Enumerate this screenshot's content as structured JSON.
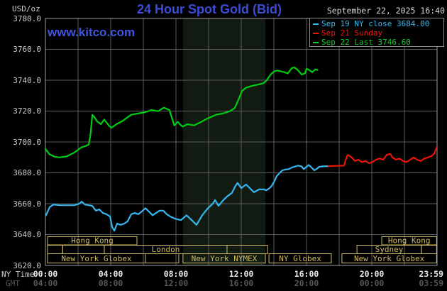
{
  "header": {
    "units": "USD/oz",
    "title": "24 Hour Spot Gold (Bid)",
    "date": "September 22, 2025 16:40",
    "watermark": "www.kitco.com"
  },
  "legend": {
    "items": [
      {
        "label": "Sep 19 NY close 3684.00",
        "color": "#2fb9f2"
      },
      {
        "label": "Sep 21 Sunday",
        "color": "#f2180c"
      },
      {
        "label": "Sep 22 Last 3746.60",
        "color": "#0fce2a"
      }
    ]
  },
  "axis_labels": {
    "ny_time": "NY Time",
    "gmt": "GMT"
  },
  "colors": {
    "background": "#000000",
    "grid": "#5c5c5c",
    "border": "#9c9c9c",
    "session": "#cdb968",
    "band": "#121b12",
    "series_green": "#00cc11",
    "series_cyan": "#36b6ee",
    "series_red": "#ea1508",
    "title_blue": "#3c4bd8",
    "watermark_blue": "#4155df"
  },
  "sessions": {
    "rows": [
      {
        "boxes": [
          {
            "t0": 0.13,
            "t1": 5.61,
            "label": "Hong Kong"
          },
          {
            "t0": 20.61,
            "t1": 23.97,
            "label": "Hong Kong"
          }
        ]
      },
      {
        "boxes": [
          {
            "t0": 0.13,
            "t1": 1.06,
            "label": ""
          },
          {
            "t0": 1.06,
            "t1": 3.61,
            "label": ""
          },
          {
            "t0": 3.61,
            "t1": 11.13,
            "label": "London"
          },
          {
            "t0": 11.13,
            "t1": 13.61,
            "label": ""
          },
          {
            "t0": 19.09,
            "t1": 23.04,
            "label": "Sydney"
          },
          {
            "t0": 23.04,
            "t1": 23.97,
            "label": ""
          }
        ]
      },
      {
        "boxes": [
          {
            "t0": 0.13,
            "t1": 6.13,
            "label": "New York Globex"
          },
          {
            "t0": 6.13,
            "t1": 8.17,
            "label": ""
          },
          {
            "t0": 8.43,
            "t1": 13.48,
            "label": "New York NYMEX"
          },
          {
            "t0": 13.7,
            "t1": 17.52,
            "label": "NY Globex"
          },
          {
            "t0": 18.17,
            "t1": 23.97,
            "label": "New York Globex"
          }
        ]
      }
    ]
  },
  "chart_data": {
    "type": "line",
    "title": "24 Hour Spot Gold (Bid)",
    "xlabel": "NY Time",
    "ylabel": "USD/oz",
    "xlim": [
      0,
      24
    ],
    "ylim": [
      3620,
      3780
    ],
    "grid": true,
    "x_unit": "hours NY time",
    "highlight_band": {
      "t0": 8.43,
      "t1": 13.48,
      "meaning": "NYMEX floor session"
    },
    "yticks": [
      {
        "v": 3780,
        "label": "3780.0"
      },
      {
        "v": 3760,
        "label": "3760.0"
      },
      {
        "v": 3740,
        "label": "3740.0"
      },
      {
        "v": 3720,
        "label": "3720.0"
      },
      {
        "v": 3700,
        "label": "3700.0"
      },
      {
        "v": 3680,
        "label": "3680.0"
      },
      {
        "v": 3660,
        "label": "3660.0"
      },
      {
        "v": 3640,
        "label": "3640.0"
      },
      {
        "v": 3620,
        "label": "3620.0"
      }
    ],
    "xticks": [
      {
        "t": 0,
        "ny": "00:00",
        "gmt": "04:00"
      },
      {
        "t": 4,
        "ny": "04:00",
        "gmt": "08:00"
      },
      {
        "t": 8,
        "ny": "08:00",
        "gmt": "12:00"
      },
      {
        "t": 12,
        "ny": "12:00",
        "gmt": "16:00"
      },
      {
        "t": 16,
        "ny": "16:00",
        "gmt": "20:00"
      },
      {
        "t": 20,
        "ny": "20:00",
        "gmt": "00:00"
      },
      {
        "t": 23.64,
        "ny": "23:59",
        "gmt": "03:59"
      }
    ],
    "series": [
      {
        "name": "Sep 19 NY close 3684.00",
        "color": "#36b6ee",
        "points": [
          [
            0.04,
            3652.5
          ],
          [
            0.26,
            3657.8
          ],
          [
            0.48,
            3659.4
          ],
          [
            0.91,
            3659
          ],
          [
            1.78,
            3659
          ],
          [
            2.09,
            3660.1
          ],
          [
            2.22,
            3661.4
          ],
          [
            2.43,
            3659.4
          ],
          [
            2.87,
            3658.6
          ],
          [
            3.09,
            3655.5
          ],
          [
            3.3,
            3656.3
          ],
          [
            3.52,
            3654
          ],
          [
            3.74,
            3653.2
          ],
          [
            3.96,
            3651.7
          ],
          [
            4.09,
            3644.8
          ],
          [
            4.22,
            3642.5
          ],
          [
            4.39,
            3647.1
          ],
          [
            4.61,
            3646.3
          ],
          [
            4.83,
            3647.1
          ],
          [
            5.04,
            3648.6
          ],
          [
            5.26,
            3653.2
          ],
          [
            5.48,
            3654
          ],
          [
            5.7,
            3653.2
          ],
          [
            5.91,
            3655
          ],
          [
            6.13,
            3657.1
          ],
          [
            6.35,
            3654.8
          ],
          [
            6.57,
            3652.5
          ],
          [
            6.78,
            3654
          ],
          [
            7,
            3655.5
          ],
          [
            7.22,
            3655.5
          ],
          [
            7.43,
            3653.2
          ],
          [
            7.65,
            3651.7
          ],
          [
            7.96,
            3650.2
          ],
          [
            8.3,
            3649.4
          ],
          [
            8.65,
            3652.5
          ],
          [
            8.96,
            3649.4
          ],
          [
            9.26,
            3646.3
          ],
          [
            9.61,
            3652.5
          ],
          [
            9.96,
            3657.1
          ],
          [
            10.26,
            3660.1
          ],
          [
            10.39,
            3662.4
          ],
          [
            10.61,
            3658.6
          ],
          [
            10.91,
            3662.4
          ],
          [
            11.13,
            3664.7
          ],
          [
            11.43,
            3667
          ],
          [
            11.65,
            3671.6
          ],
          [
            11.78,
            3673.5
          ],
          [
            12,
            3670.1
          ],
          [
            12.3,
            3672.4
          ],
          [
            12.52,
            3670.1
          ],
          [
            12.78,
            3667.4
          ],
          [
            13.09,
            3669.3
          ],
          [
            13.39,
            3669.3
          ],
          [
            13.52,
            3668.6
          ],
          [
            13.74,
            3670.1
          ],
          [
            13.87,
            3671.6
          ],
          [
            14.04,
            3674.7
          ],
          [
            14.17,
            3677.8
          ],
          [
            14.3,
            3679.3
          ],
          [
            14.52,
            3681.6
          ],
          [
            14.7,
            3682.1
          ],
          [
            14.91,
            3682.4
          ],
          [
            15.13,
            3683.6
          ],
          [
            15.35,
            3684.2
          ],
          [
            15.48,
            3684.7
          ],
          [
            15.7,
            3684.2
          ],
          [
            15.83,
            3682.4
          ],
          [
            16,
            3683.9
          ],
          [
            16.13,
            3685.1
          ],
          [
            16.26,
            3683.9
          ],
          [
            16.48,
            3681.6
          ],
          [
            16.65,
            3682.7
          ],
          [
            16.78,
            3683.9
          ],
          [
            17,
            3684.2
          ],
          [
            17.35,
            3684.3
          ]
        ]
      },
      {
        "name": "Sep 21 Sunday",
        "color": "#ea1508",
        "points": [
          [
            17.35,
            3684.3
          ],
          [
            18.3,
            3684.7
          ],
          [
            18.39,
            3688
          ],
          [
            18.52,
            3691.6
          ],
          [
            18.65,
            3690.8
          ],
          [
            18.83,
            3689.3
          ],
          [
            18.96,
            3687.7
          ],
          [
            19.17,
            3688.5
          ],
          [
            19.39,
            3687
          ],
          [
            19.61,
            3687.7
          ],
          [
            19.83,
            3686.2
          ],
          [
            20.04,
            3687
          ],
          [
            20.26,
            3688.5
          ],
          [
            20.48,
            3689.3
          ],
          [
            20.7,
            3688.5
          ],
          [
            20.91,
            3691.6
          ],
          [
            21.13,
            3692.3
          ],
          [
            21.26,
            3690
          ],
          [
            21.48,
            3688.5
          ],
          [
            21.7,
            3689.3
          ],
          [
            21.91,
            3687.7
          ],
          [
            22.13,
            3687
          ],
          [
            22.35,
            3688.5
          ],
          [
            22.57,
            3690
          ],
          [
            22.78,
            3688.5
          ],
          [
            23,
            3687.7
          ],
          [
            23.22,
            3689.3
          ],
          [
            23.43,
            3690
          ],
          [
            23.65,
            3690.8
          ],
          [
            23.83,
            3692.5
          ],
          [
            23.97,
            3696.3
          ]
        ]
      },
      {
        "name": "Sep 22 Last 3746.60",
        "color": "#00cc11",
        "points": [
          [
            0,
            3695.5
          ],
          [
            0.25,
            3692
          ],
          [
            0.55,
            3690.5
          ],
          [
            0.85,
            3690
          ],
          [
            1.3,
            3690.6
          ],
          [
            1.75,
            3693
          ],
          [
            2.2,
            3696.5
          ],
          [
            2.5,
            3697.5
          ],
          [
            2.65,
            3698.2
          ],
          [
            2.75,
            3704
          ],
          [
            2.88,
            3717.6
          ],
          [
            3.02,
            3715.8
          ],
          [
            3.15,
            3713.5
          ],
          [
            3.4,
            3711.5
          ],
          [
            3.6,
            3714.5
          ],
          [
            3.9,
            3710.5
          ],
          [
            4.05,
            3709.2
          ],
          [
            4.35,
            3711.5
          ],
          [
            4.75,
            3713.8
          ],
          [
            5.25,
            3717.6
          ],
          [
            5.65,
            3718.4
          ],
          [
            6.05,
            3719.1
          ],
          [
            6.5,
            3720.7
          ],
          [
            6.9,
            3719.9
          ],
          [
            7.25,
            3722.2
          ],
          [
            7.6,
            3720.7
          ],
          [
            7.9,
            3710.7
          ],
          [
            8.1,
            3713
          ],
          [
            8.4,
            3709.9
          ],
          [
            8.7,
            3711.5
          ],
          [
            9.1,
            3710.7
          ],
          [
            9.55,
            3713
          ],
          [
            9.95,
            3715.3
          ],
          [
            10.45,
            3717.6
          ],
          [
            10.85,
            3718.4
          ],
          [
            11.3,
            3719.9
          ],
          [
            11.6,
            3722
          ],
          [
            11.9,
            3729.1
          ],
          [
            12.05,
            3733
          ],
          [
            12.3,
            3735.2
          ],
          [
            12.7,
            3736.4
          ],
          [
            13,
            3737.1
          ],
          [
            13.35,
            3738
          ],
          [
            13.55,
            3739.8
          ],
          [
            13.8,
            3743.7
          ],
          [
            14,
            3745.6
          ],
          [
            14.2,
            3746.3
          ],
          [
            14.65,
            3745.2
          ],
          [
            14.85,
            3744.4
          ],
          [
            15.1,
            3747.8
          ],
          [
            15.25,
            3748.3
          ],
          [
            15.45,
            3746.7
          ],
          [
            15.7,
            3743.7
          ],
          [
            15.9,
            3744.4
          ],
          [
            16,
            3747.4
          ],
          [
            16.15,
            3746.7
          ],
          [
            16.35,
            3745.2
          ],
          [
            16.55,
            3747.1
          ],
          [
            16.67,
            3746.6
          ]
        ]
      }
    ]
  }
}
